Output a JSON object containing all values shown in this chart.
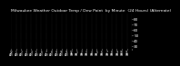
{
  "title": "Milwaukee Weather Outdoor Temp / Dew Point  by Minute  (24 Hours) (Alternate)",
  "title_fontsize": 3.2,
  "bg_color": "#000000",
  "text_color": "#ffffff",
  "grid_color": "#404040",
  "temp_color": "#ff0000",
  "dew_color": "#0000ff",
  "ylim": [
    25,
    90
  ],
  "yticks": [
    30,
    40,
    50,
    60,
    70,
    80
  ],
  "ylabel_fontsize": 3.0,
  "xlabel_fontsize": 2.2,
  "dot_size": 0.5,
  "seed": 42,
  "n_points": 1440
}
